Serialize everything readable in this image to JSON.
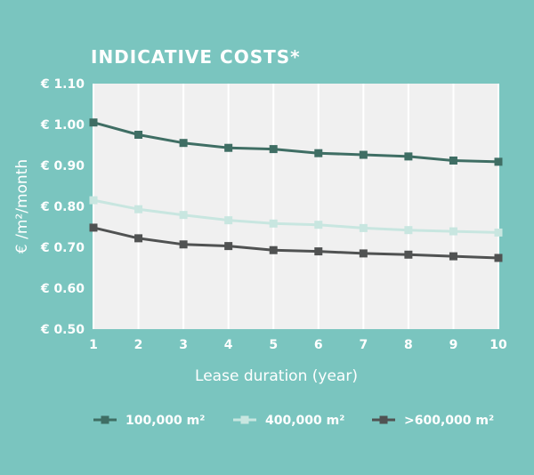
{
  "colors": {
    "background": "#7ac5bf",
    "plot_background": "#f0f0f0",
    "grid": "#ffffff",
    "text": "#ffffff"
  },
  "chart_data": {
    "type": "line",
    "title": "INDICATIVE COSTS*",
    "xlabel": "Lease duration (year)",
    "ylabel": "€ /m²/month",
    "x": [
      1,
      2,
      3,
      4,
      5,
      6,
      7,
      8,
      9,
      10
    ],
    "x_tick_labels": [
      "1",
      "2",
      "3",
      "4",
      "5",
      "6",
      "7",
      "8",
      "9",
      "10"
    ],
    "ylim": [
      0.5,
      1.1
    ],
    "y_ticks": [
      0.5,
      0.6,
      0.7,
      0.8,
      0.9,
      1.0,
      1.1
    ],
    "y_tick_labels": [
      "€ 0.50",
      "€ 0.60",
      "€ 0.70",
      "€ 0.80",
      "€ 0.90",
      "€ 1.00",
      "€ 1.10"
    ],
    "grid": true,
    "legend_position": "bottom",
    "series": [
      {
        "name": "100,000 m²",
        "color": "#3f6e64",
        "marker": "square",
        "values": [
          1.005,
          0.975,
          0.955,
          0.943,
          0.94,
          0.93,
          0.926,
          0.922,
          0.912,
          0.909
        ]
      },
      {
        "name": "400,000 m²",
        "color": "#c8e6e0",
        "marker": "square",
        "values": [
          0.815,
          0.793,
          0.779,
          0.766,
          0.758,
          0.755,
          0.747,
          0.742,
          0.739,
          0.736
        ]
      },
      {
        "name": ">600,000 m²",
        "color": "#505252",
        "marker": "square",
        "values": [
          0.748,
          0.722,
          0.707,
          0.703,
          0.693,
          0.69,
          0.685,
          0.682,
          0.678,
          0.674
        ]
      }
    ]
  }
}
